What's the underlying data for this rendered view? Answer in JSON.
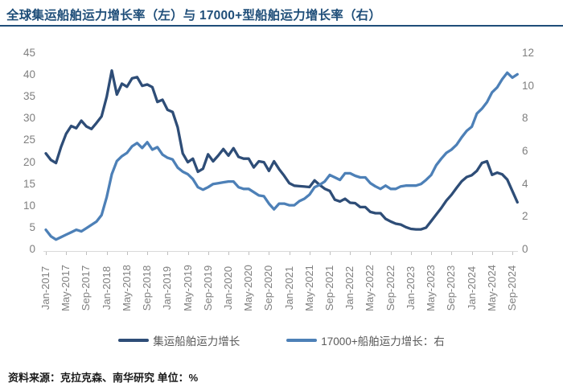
{
  "title": "全球集运船舶运力增长率（左）与 17000+型船舶运力增长率（右）",
  "footer": {
    "source": "资料来源：克拉克森、南华研究",
    "unit": "单位：%"
  },
  "colors": {
    "title": "#1f4e79",
    "series_main": "#2e4d77",
    "series_secondary": "#4d80b7",
    "axis_text": "#7f7f7f",
    "axis_line": "#d9d9d9"
  },
  "legend": {
    "items": [
      {
        "label": "集运船舶运力增长",
        "color": "#2e4d77"
      },
      {
        "label": "17000+船舶运力增长：右",
        "color": "#4d80b7"
      }
    ]
  },
  "chart_data": {
    "type": "line",
    "title": "全球集运船舶运力增长率（左）与 17000+型船舶运力增长率（右）",
    "x_start": "Jan-2017",
    "x_interval": "1 month",
    "n_points": 94,
    "x_tick_labels": [
      "Jan-2017",
      "May-2017",
      "Sep-2017",
      "Jan-2018",
      "May-2018",
      "Sep-2018",
      "Jan-2019",
      "May-2019",
      "Sep-2019",
      "Jan-2020",
      "May-2020",
      "Sep-2020",
      "Jan-2021",
      "May-2021",
      "Sep-2021",
      "Jan-2022",
      "May-2022",
      "Sep-2022",
      "Jan-2023",
      "May-2023",
      "Sep-2023",
      "Jan-2024",
      "May-2024",
      "Sep-2024"
    ],
    "x_tick_month_step": 4,
    "left_axis": {
      "min": 0,
      "max": 45,
      "ticks": [
        0,
        5,
        10,
        15,
        20,
        25,
        30,
        35,
        40,
        45
      ]
    },
    "right_axis": {
      "min": 0,
      "max": 12,
      "ticks": [
        0,
        2,
        4,
        6,
        8,
        10,
        12
      ]
    },
    "grid": false,
    "legend_position": "bottom",
    "unit": "%",
    "series": [
      {
        "name": "集运船舶运力增长",
        "axis": "left",
        "color": "#2e4d77",
        "values": [
          22.0,
          20.5,
          19.8,
          23.5,
          26.5,
          28.3,
          27.8,
          29.5,
          28.2,
          27.6,
          29.0,
          30.5,
          35.0,
          41.0,
          35.5,
          38.0,
          37.3,
          39.2,
          39.5,
          37.5,
          37.8,
          37.2,
          33.8,
          34.3,
          32.0,
          31.5,
          28.0,
          22.0,
          20.0,
          20.8,
          17.8,
          18.5,
          21.8,
          20.2,
          21.5,
          23.0,
          21.5,
          23.2,
          21.2,
          20.8,
          20.8,
          18.8,
          20.2,
          20.0,
          18.0,
          20.2,
          18.4,
          16.9,
          15.2,
          14.6,
          14.5,
          14.4,
          14.3,
          15.8,
          14.8,
          13.9,
          13.4,
          11.4,
          11.0,
          11.6,
          10.7,
          10.6,
          9.7,
          9.7,
          8.6,
          8.3,
          8.3,
          7.0,
          6.4,
          5.9,
          5.7,
          5.1,
          4.7,
          4.6,
          4.6,
          5.0,
          6.5,
          8.0,
          9.5,
          11.2,
          12.5,
          14.1,
          15.6,
          16.6,
          17.0,
          18.0,
          19.8,
          20.2,
          17.1,
          17.6,
          17.2,
          16.0,
          13.4,
          10.8
        ]
      },
      {
        "name": "17000+船舶运力增长：右",
        "axis": "right",
        "color": "#4d80b7",
        "values": [
          1.2,
          0.8,
          0.6,
          0.75,
          0.9,
          1.05,
          1.2,
          1.1,
          1.3,
          1.5,
          1.7,
          2.1,
          3.2,
          4.6,
          5.4,
          5.7,
          5.9,
          6.3,
          6.5,
          6.2,
          6.55,
          6.1,
          6.25,
          5.8,
          5.6,
          5.5,
          5.0,
          4.75,
          4.6,
          4.3,
          3.8,
          3.65,
          3.8,
          4.0,
          4.05,
          4.1,
          4.15,
          4.15,
          3.8,
          3.7,
          3.7,
          3.5,
          3.3,
          3.25,
          2.8,
          2.45,
          2.8,
          2.8,
          2.7,
          2.7,
          2.95,
          3.1,
          3.35,
          3.8,
          3.95,
          4.15,
          4.55,
          4.4,
          4.25,
          4.65,
          4.65,
          4.5,
          4.4,
          4.4,
          4.05,
          3.85,
          3.7,
          3.9,
          3.7,
          3.7,
          3.85,
          3.9,
          3.9,
          3.9,
          4.0,
          4.25,
          4.55,
          5.15,
          5.55,
          5.9,
          6.1,
          6.4,
          6.85,
          7.25,
          7.5,
          8.3,
          8.6,
          9.0,
          9.6,
          9.9,
          10.4,
          10.8,
          10.5,
          10.7
        ]
      }
    ]
  }
}
